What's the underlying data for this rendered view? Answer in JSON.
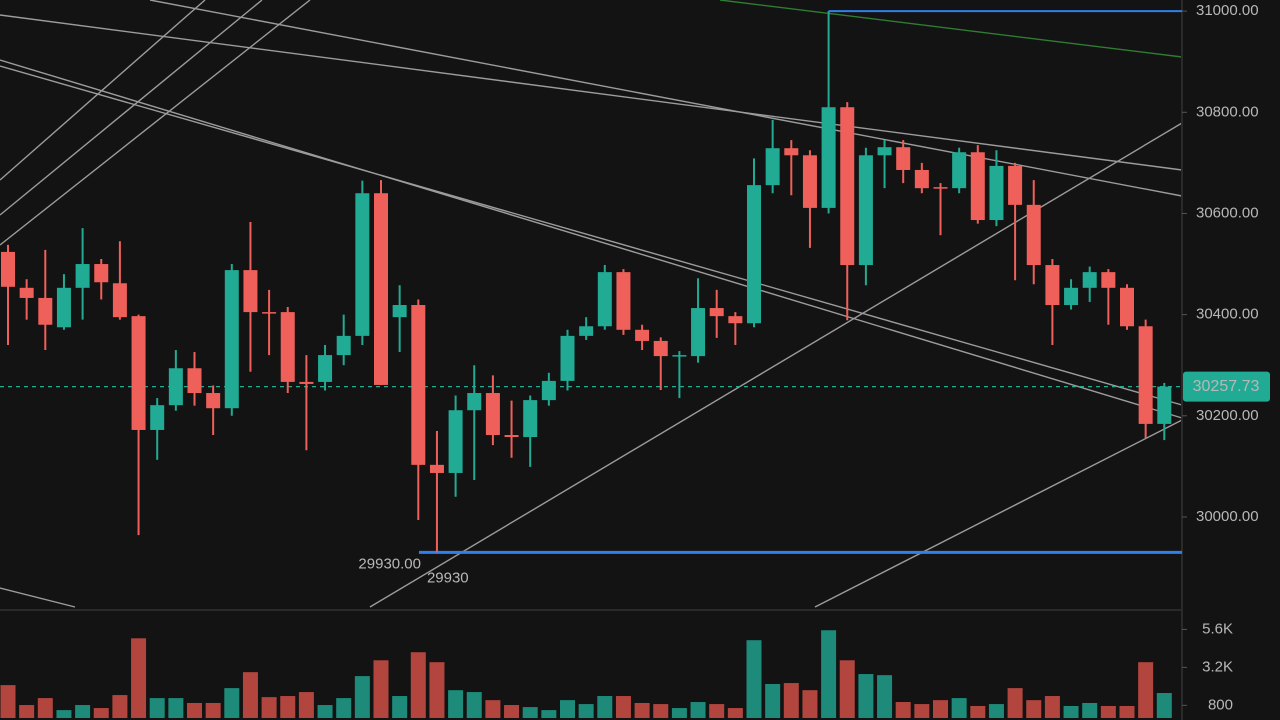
{
  "chart_data": {
    "type": "candlestick",
    "up_color": "#22ab94",
    "down_color": "#f0605a",
    "ylim": [
      29822,
      31022
    ],
    "yticks": [
      {
        "value": 30000,
        "label": "30000.00"
      },
      {
        "value": 30200,
        "label": "30200.00"
      },
      {
        "value": 30400,
        "label": "30400.00"
      },
      {
        "value": 30600,
        "label": "30600.00"
      },
      {
        "value": 30800,
        "label": "30800.00"
      },
      {
        "value": 31000,
        "label": "31000.00"
      }
    ],
    "candles": {
      "open": [
        30524,
        30453,
        30433,
        30375,
        30453,
        30500,
        30462,
        30397,
        30172,
        30221,
        30294,
        30245,
        30215,
        30488,
        30405,
        30405,
        30267,
        30267,
        30320,
        30358,
        30640,
        30395,
        30419,
        30103,
        30087,
        30211,
        30245,
        30162,
        30158,
        30231,
        30269,
        30358,
        30377,
        30484,
        30370,
        30348,
        30318,
        30318,
        30413,
        30397,
        30383,
        30656,
        30729,
        30715,
        30611,
        30810,
        30498,
        30715,
        30731,
        30686,
        30652,
        30650,
        30721,
        30587,
        30694,
        30617,
        30498,
        30419,
        30453,
        30484,
        30453,
        30377,
        30184
      ],
      "high": [
        30538,
        30470,
        30528,
        30480,
        30571,
        30510,
        30545,
        30400,
        30235,
        30330,
        30326,
        30260,
        30500,
        30583,
        30449,
        30415,
        30320,
        30340,
        30400,
        30665,
        30666,
        30458,
        30430,
        30170,
        30240,
        30300,
        30280,
        30230,
        30240,
        30285,
        30370,
        30395,
        30498,
        30490,
        30380,
        30355,
        30328,
        30472,
        30449,
        30405,
        30709,
        30785,
        30745,
        30725,
        31000,
        30820,
        30730,
        30745,
        30745,
        30700,
        30660,
        30730,
        30735,
        30725,
        30700,
        30666,
        30510,
        30470,
        30495,
        30490,
        30460,
        30390,
        30265
      ],
      "low": [
        30340,
        30390,
        30330,
        30370,
        30390,
        30430,
        30390,
        29964,
        30113,
        30210,
        30220,
        30162,
        30200,
        30287,
        30320,
        30245,
        30132,
        30250,
        30300,
        30340,
        30261,
        30326,
        29994,
        29930,
        30040,
        30073,
        30142,
        30117,
        30099,
        30220,
        30250,
        30350,
        30370,
        30360,
        30330,
        30251,
        30235,
        30305,
        30354,
        30340,
        30375,
        30640,
        30636,
        30532,
        30600,
        30389,
        30458,
        30650,
        30660,
        30640,
        30557,
        30640,
        30580,
        30575,
        30468,
        30460,
        30340,
        30410,
        30425,
        30380,
        30370,
        30156,
        30152
      ],
      "close": [
        30455,
        30433,
        30380,
        30453,
        30500,
        30464,
        30395,
        30172,
        30221,
        30294,
        30245,
        30215,
        30488,
        30405,
        30403,
        30267,
        30263,
        30320,
        30358,
        30640,
        30261,
        30419,
        30103,
        30087,
        30211,
        30245,
        30162,
        30158,
        30231,
        30269,
        30358,
        30377,
        30484,
        30370,
        30348,
        30318,
        30320,
        30413,
        30397,
        30383,
        30656,
        30729,
        30715,
        30611,
        30810,
        30498,
        30715,
        30731,
        30686,
        30650,
        30650,
        30721,
        30587,
        30694,
        30617,
        30498,
        30419,
        30453,
        30484,
        30453,
        30377,
        30184,
        30257.73
      ]
    },
    "high_line": 31000,
    "low_marker": {
      "value": 29930,
      "label": "29930.00",
      "short_label": "29930"
    },
    "last_price": 30257.73,
    "volume": {
      "up_color": "#1e8a79",
      "down_color": "#b2463f",
      "ylim": [
        0,
        6640
      ],
      "yticks": [
        800,
        {
          "value": 3200,
          "label": "3.2K"
        },
        {
          "value": 5600,
          "label": "5.6K"
        }
      ],
      "values": [
        2080,
        820,
        1260,
        500,
        820,
        630,
        1450,
        5040,
        1260,
        1260,
        950,
        950,
        1890,
        2900,
        1320,
        1390,
        1640,
        820,
        1260,
        2650,
        3650,
        1390,
        4160,
        3530,
        1760,
        1640,
        1130,
        820,
        690,
        500,
        1130,
        880,
        1390,
        1390,
        950,
        880,
        630,
        1010,
        880,
        630,
        4920,
        2150,
        2210,
        1760,
        5550,
        3650,
        2780,
        2710,
        1010,
        880,
        1130,
        1260,
        760,
        880,
        1890,
        1130,
        1390,
        760,
        950,
        760,
        760,
        3530,
        1580
      ]
    }
  }
}
